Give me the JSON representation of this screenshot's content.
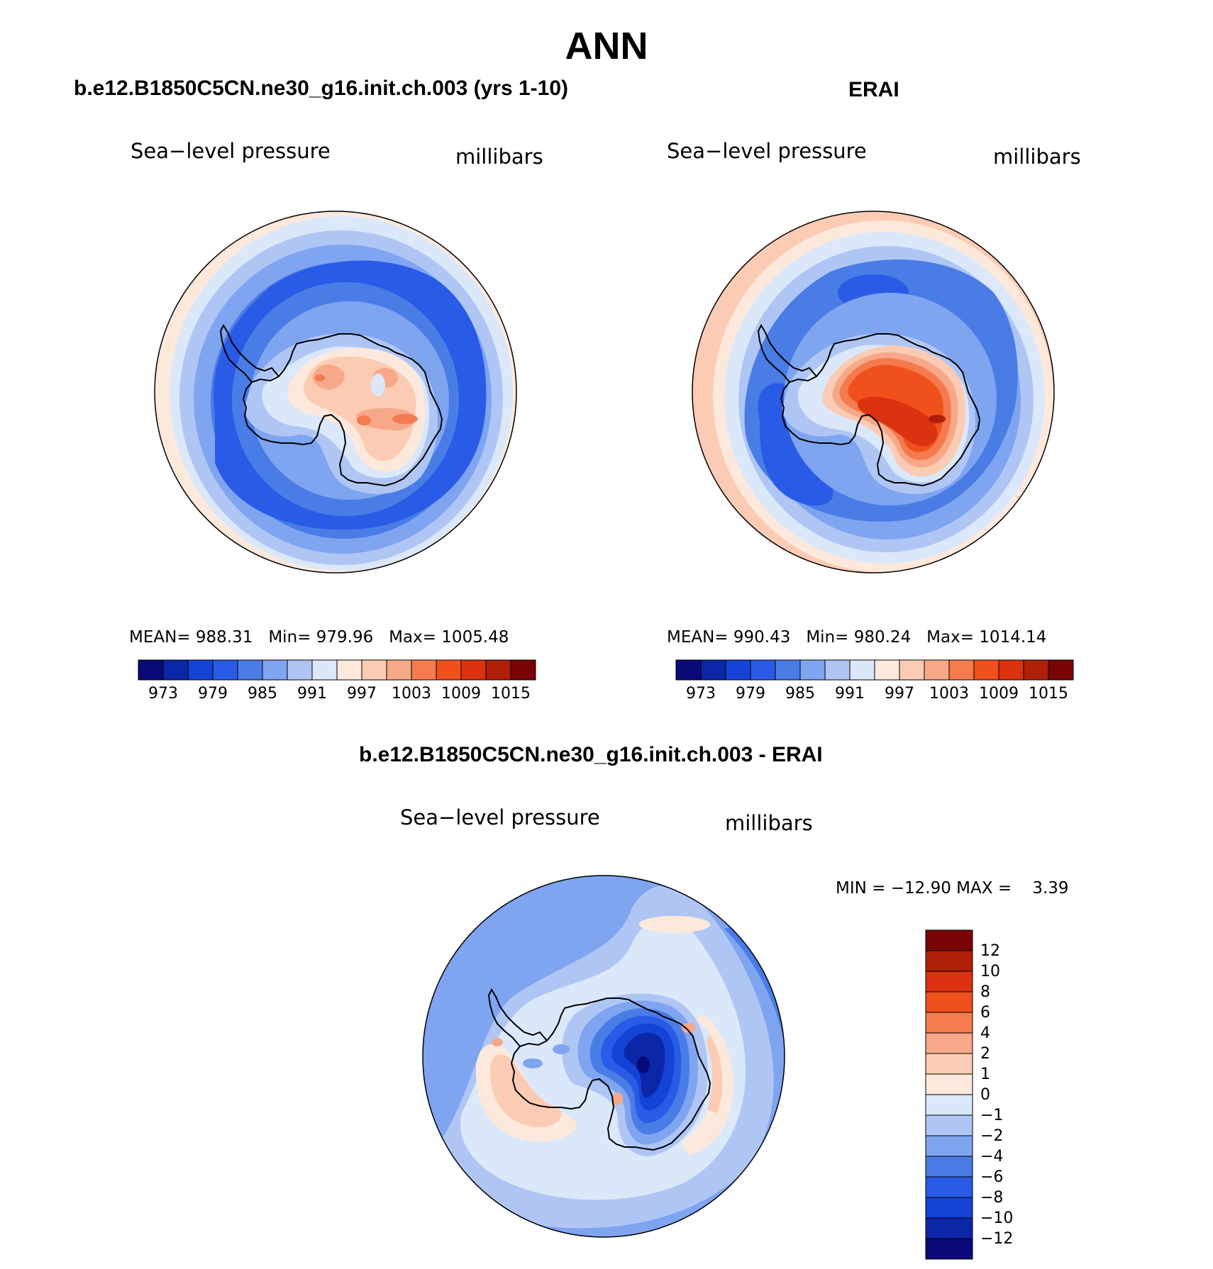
{
  "page": {
    "title": "ANN"
  },
  "colors": {
    "abs_scale": [
      "#0a0a78",
      "#0c26a8",
      "#1443d6",
      "#2a5be6",
      "#4a7ce6",
      "#7fa4f0",
      "#afc6f5",
      "#dbe8fa",
      "#fde9dc",
      "#fbcbb3",
      "#f7a888",
      "#f57a4e",
      "#f0501c",
      "#db3210",
      "#b02008",
      "#7a0405"
    ],
    "diff_scale": [
      "#0a0a78",
      "#0c26a8",
      "#1443d6",
      "#2a5be6",
      "#4a7ce6",
      "#7fa4f0",
      "#afc6f5",
      "#dbe8fa",
      "#fde9dc",
      "#fbcbb3",
      "#f7a888",
      "#f57a4e",
      "#f0501c",
      "#db3210",
      "#b02008",
      "#7a0405"
    ]
  },
  "panels": {
    "model": {
      "title": "b.e12.B1850C5CN.ne30_g16.init.ch.003 (yrs 1-10)",
      "field": "Sea−level pressure",
      "units": "millibars",
      "stats": {
        "mean_label": "MEAN=",
        "mean": "988.31",
        "min_label": "Min=",
        "min": "979.96",
        "max_label": "Max=",
        "max": "1005.48"
      },
      "colorbar_labels": [
        "973",
        "979",
        "985",
        "991",
        "997",
        "1003",
        "1009",
        "1015"
      ]
    },
    "obs": {
      "title": "ERAI",
      "field": "Sea−level pressure",
      "units": "millibars",
      "stats": {
        "mean_label": "MEAN=",
        "mean": "990.43",
        "min_label": "Min=",
        "min": "980.24",
        "max_label": "Max=",
        "max": "1014.14"
      },
      "colorbar_labels": [
        "973",
        "979",
        "985",
        "991",
        "997",
        "1003",
        "1009",
        "1015"
      ]
    },
    "diff": {
      "title": "b.e12.B1850C5CN.ne30_g16.init.ch.003 - ERAI",
      "field": "Sea−level pressure",
      "units": "millibars",
      "stats": {
        "min_label": "MIN =",
        "min": "−12.90",
        "max_label": "MAX =",
        "max": "3.39"
      },
      "colorbar_labels": [
        "12",
        "10",
        "8",
        "6",
        "4",
        "2",
        "1",
        "0",
        "−1",
        "−2",
        "−4",
        "−6",
        "−8",
        "−10",
        "−12"
      ]
    }
  }
}
